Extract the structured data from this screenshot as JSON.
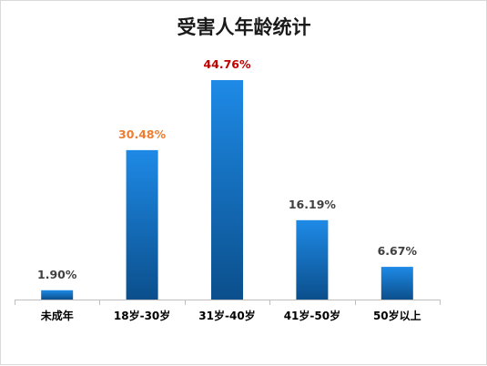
{
  "chart_data": {
    "type": "bar",
    "title": "受害人年龄统计",
    "categories": [
      "未成年",
      "18岁-30岁",
      "31岁-40岁",
      "41岁-50岁",
      "50岁以上"
    ],
    "values": [
      1.9,
      30.48,
      44.76,
      16.19,
      6.67
    ],
    "data_labels": [
      "1.90%",
      "30.48%",
      "44.76%",
      "16.19%",
      "6.67%"
    ],
    "label_colors": [
      "#404040",
      "#ed7d31",
      "#c00000",
      "#404040",
      "#404040"
    ],
    "ylim": [
      0,
      50
    ],
    "grid": false,
    "legend": "none",
    "colors": {
      "bar_light": "#1e8ae6",
      "bar_dark": "#0b4f8c",
      "axis": "#bfbfbf"
    }
  }
}
